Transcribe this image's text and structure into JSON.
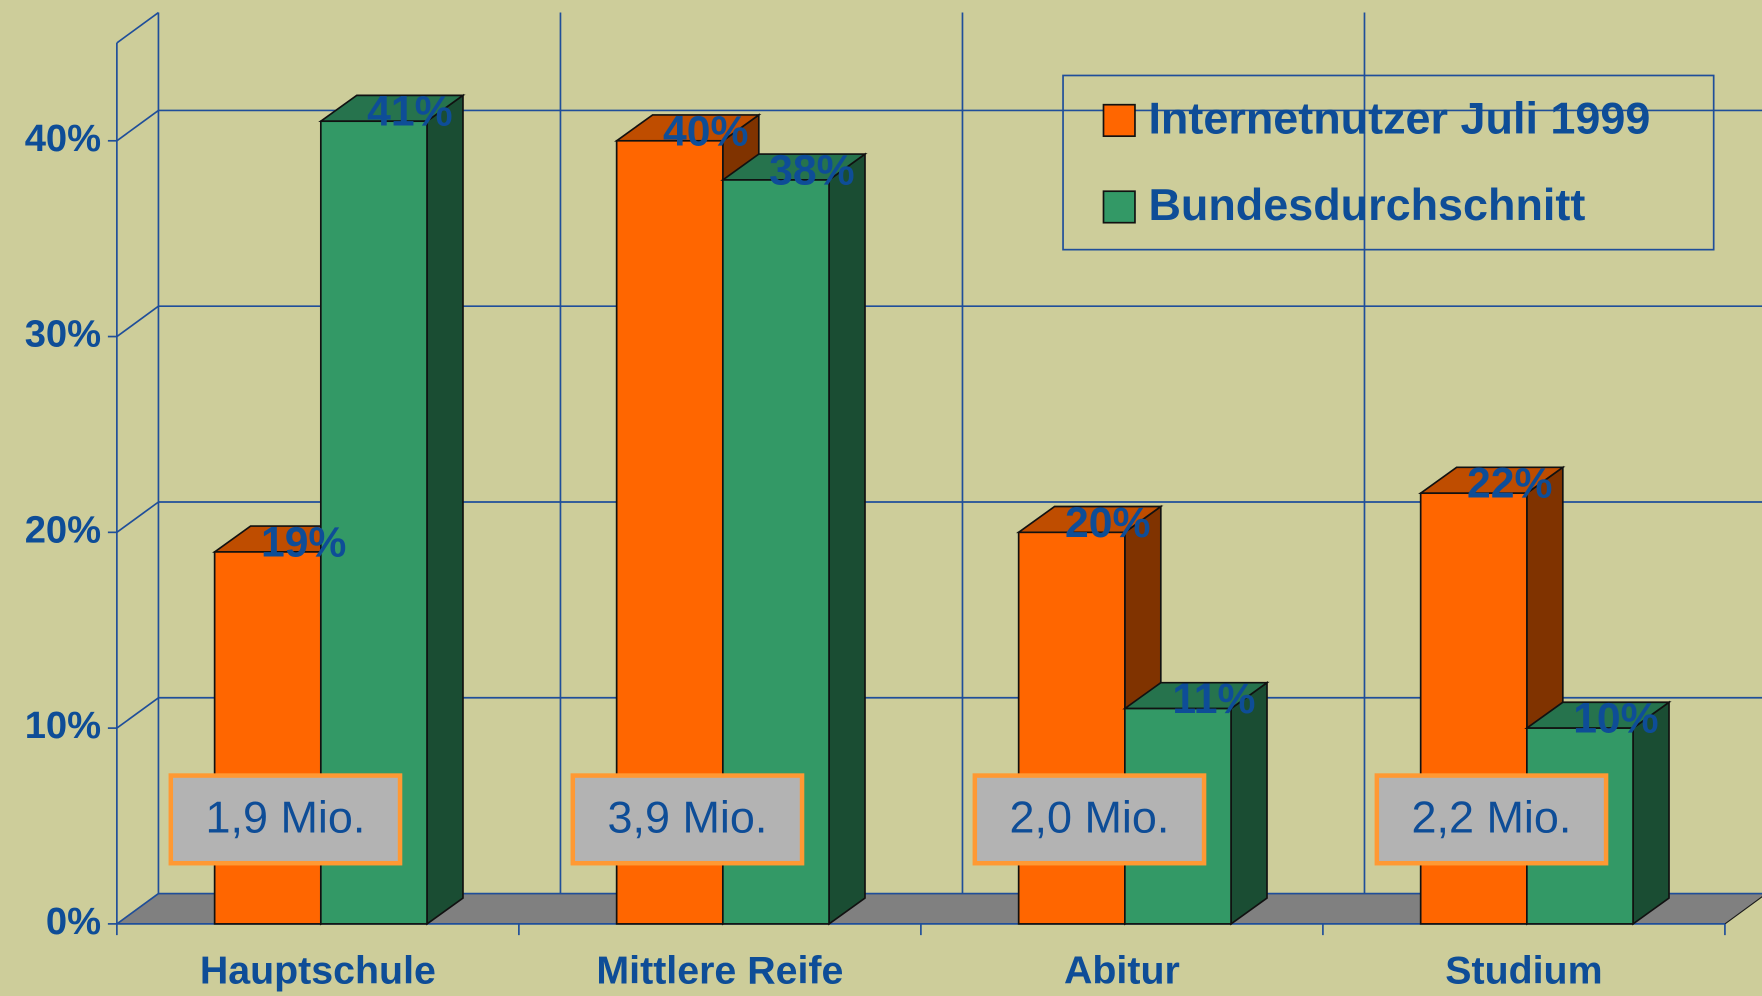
{
  "chart_data": {
    "type": "bar3d",
    "categories": [
      "Hauptschule",
      "Mittlere Reife",
      "Abitur",
      "Studium"
    ],
    "series": [
      {
        "name": "Internetnutzer Juli 1999",
        "color": "#ff6600",
        "values": [
          19,
          40,
          20,
          22
        ],
        "value_labels": [
          "19%",
          "40%",
          "20%",
          "22%"
        ]
      },
      {
        "name": "Bundesdurchschnitt",
        "color": "#339966",
        "values": [
          41,
          38,
          11,
          10
        ],
        "value_labels": [
          "41%",
          "38%",
          "11%",
          "10%"
        ]
      }
    ],
    "annotations": [
      "1,9 Mio.",
      "3,9 Mio.",
      "2,0 Mio.",
      "2,2 Mio."
    ],
    "ylim": [
      0,
      45
    ],
    "yticks": [
      {
        "value": 0,
        "label": "0%"
      },
      {
        "value": 10,
        "label": "10%"
      },
      {
        "value": 20,
        "label": "20%"
      },
      {
        "value": 30,
        "label": "30%"
      },
      {
        "value": 40,
        "label": "40%"
      }
    ],
    "grid": true,
    "legend": "top-right"
  }
}
